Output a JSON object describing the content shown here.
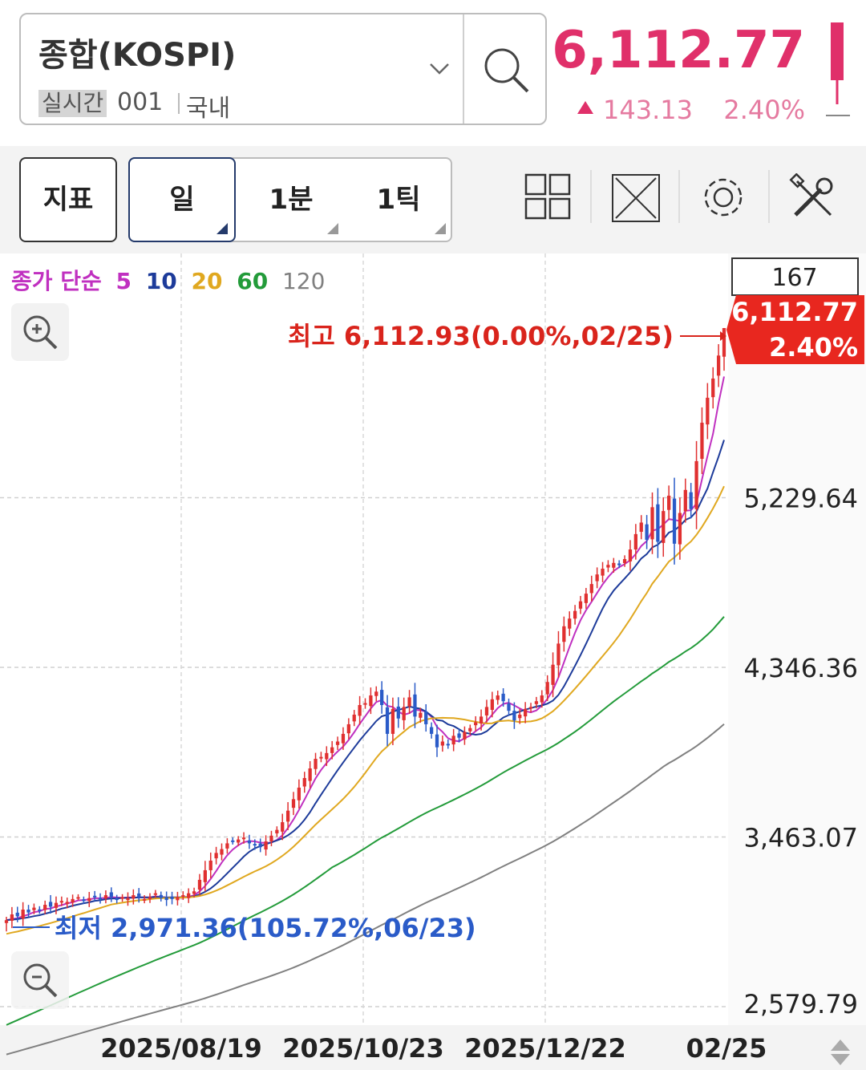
{
  "header": {
    "symbol_name": "종합(KOSPI)",
    "realtime_label": "실시간",
    "symbol_code": "001",
    "market": "국내",
    "price": "6,112.77",
    "change_value": "143.13",
    "change_percent": "2.40%",
    "up_color": "#e0306a"
  },
  "toolbar": {
    "indicator_label": "지표",
    "period_day": "일",
    "period_minute": "1분",
    "period_tick": "1틱",
    "icons": [
      "layout-grid-icon",
      "expand-icon",
      "gear-icon",
      "tools-icon"
    ]
  },
  "chart_data": {
    "type": "candlestick",
    "legend": {
      "prefix": "종가 단순",
      "items": [
        {
          "label": "5",
          "color": "#c030c0"
        },
        {
          "label": "10",
          "color": "#1d3b9a"
        },
        {
          "label": "20",
          "color": "#e0a820"
        },
        {
          "label": "60",
          "color": "#239b3a"
        },
        {
          "label": "120",
          "color": "#808080"
        }
      ]
    },
    "y_ticks": [
      "5,229.64",
      "4,346.36",
      "3,463.07",
      "2,579.79"
    ],
    "ylim": [
      2579.79,
      6112.77
    ],
    "x_ticks": [
      "2025/08/19",
      "2025/10/23",
      "2025/12/22",
      "02/25"
    ],
    "count_label": "167",
    "current_price_label": "6,112.77",
    "current_change_label": "2.40%",
    "high_annotation": "최고 6,112.93(0.00%,02/25)",
    "low_annotation": "최저 2,971.36(105.72%,06/23)",
    "high": 6112.93,
    "low": 2971.36,
    "up_color": "#e03030",
    "down_color": "#2a5bc8",
    "closes": [
      3030,
      3060,
      3050,
      3085,
      3070,
      3095,
      3080,
      3110,
      3100,
      3120,
      3130,
      3125,
      3140,
      3150,
      3130,
      3145,
      3155,
      3140,
      3160,
      3150,
      3135,
      3150,
      3145,
      3160,
      3150,
      3140,
      3150,
      3170,
      3145,
      3135,
      3140,
      3150,
      3160,
      3170,
      3180,
      3240,
      3290,
      3340,
      3380,
      3400,
      3430,
      3440,
      3450,
      3460,
      3430,
      3420,
      3410,
      3440,
      3470,
      3500,
      3540,
      3600,
      3660,
      3720,
      3770,
      3820,
      3870,
      3880,
      3900,
      3930,
      3960,
      4000,
      4050,
      4100,
      4150,
      4160,
      4200,
      4220,
      4150,
      4000,
      4130,
      4080,
      4140,
      4190,
      4090,
      4110,
      4050,
      4000,
      3930,
      3960,
      3945,
      3990,
      3980,
      4010,
      4030,
      4060,
      4090,
      4140,
      4180,
      4200,
      4170,
      4120,
      4070,
      4100,
      4130,
      4140,
      4170,
      4200,
      4270,
      4360,
      4470,
      4560,
      4600,
      4640,
      4690,
      4730,
      4780,
      4830,
      4860,
      4880,
      4890,
      4880,
      4910,
      4960,
      5040,
      5100,
      5010,
      5180,
      5000,
      5160,
      5240,
      4990,
      5150,
      5270,
      5170,
      5420,
      5620,
      5750,
      5850,
      5969.64,
      6112.77
    ]
  }
}
